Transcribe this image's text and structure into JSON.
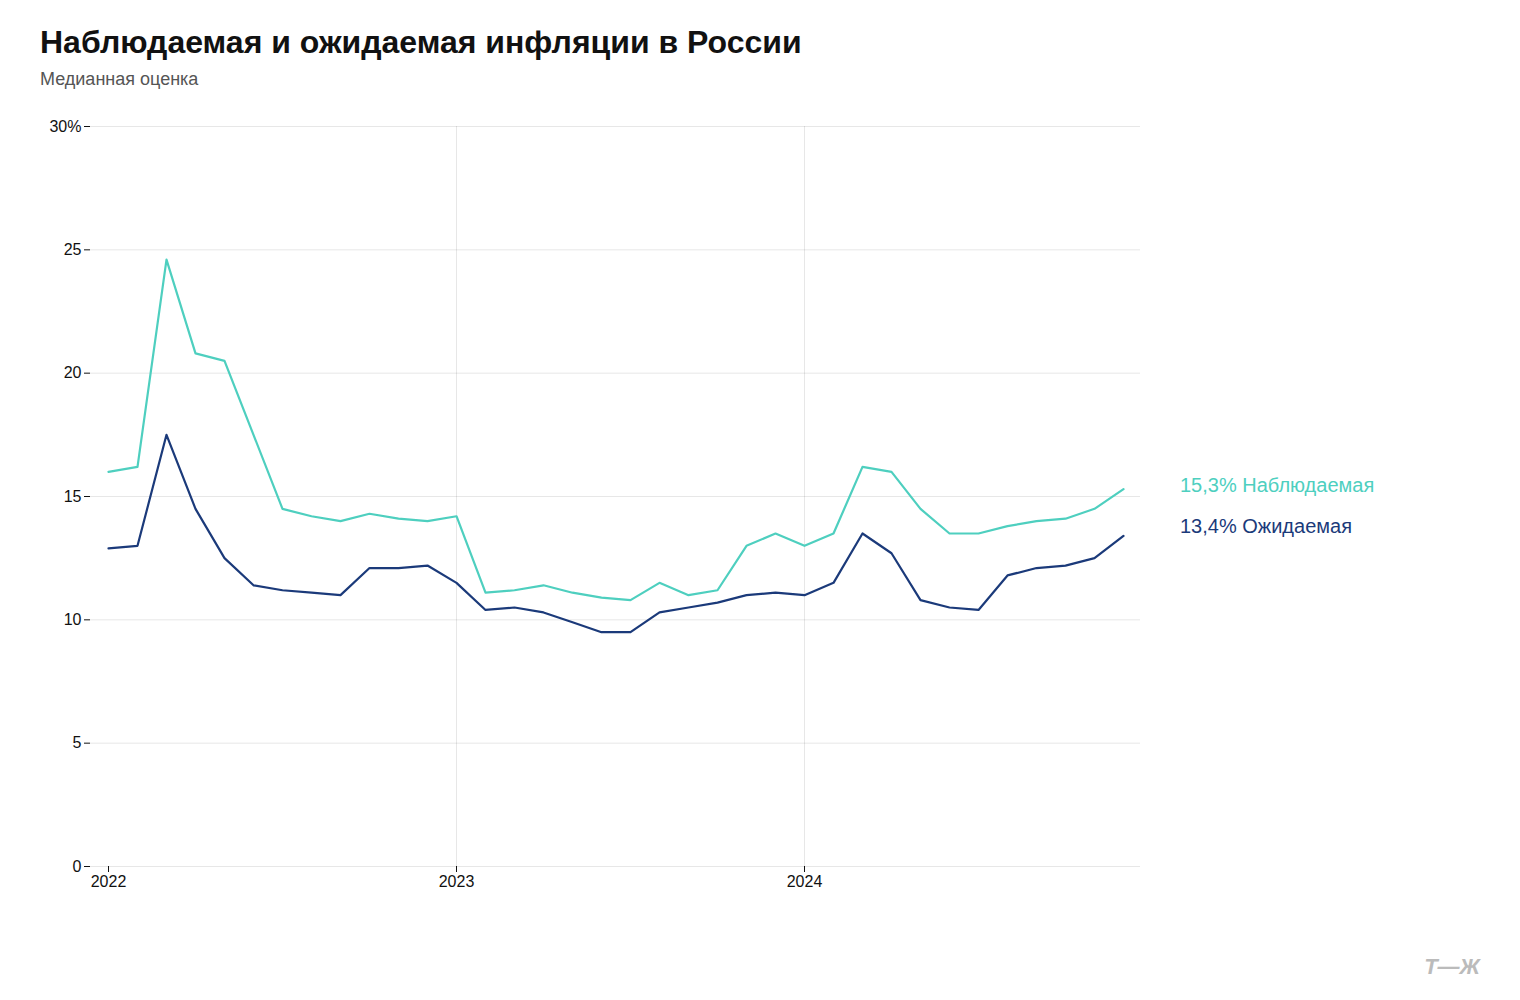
{
  "chart_data": {
    "type": "line",
    "title": "Наблюдаемая и ожидаемая инфляции в России",
    "subtitle": "Медианная оценка",
    "categories": [
      "2022",
      null,
      null,
      null,
      null,
      null,
      null,
      null,
      null,
      null,
      null,
      null,
      "2023",
      null,
      null,
      null,
      null,
      null,
      null,
      null,
      null,
      null,
      null,
      null,
      "2024",
      null,
      null,
      null,
      null,
      null,
      null,
      null,
      null,
      null,
      null,
      null
    ],
    "series": [
      {
        "name": "15,3% Наблюдаемая",
        "color": "#4ECFBF",
        "values": [
          16.0,
          16.2,
          24.6,
          20.8,
          20.5,
          17.5,
          14.5,
          14.2,
          14.0,
          14.3,
          14.1,
          14.0,
          14.2,
          11.1,
          11.2,
          11.4,
          11.1,
          10.9,
          10.8,
          11.5,
          11.0,
          11.2,
          13.0,
          13.5,
          13.0,
          13.5,
          16.2,
          16.0,
          14.5,
          13.5,
          13.5,
          13.8,
          14.0,
          14.1,
          14.5,
          15.3
        ]
      },
      {
        "name": "13,4% Ожидаемая",
        "color": "#1B3A7A",
        "values": [
          12.9,
          13.0,
          17.5,
          14.5,
          12.5,
          11.4,
          11.2,
          11.1,
          11.0,
          12.1,
          12.1,
          12.2,
          11.5,
          10.4,
          10.5,
          10.3,
          9.9,
          9.5,
          9.5,
          10.3,
          10.5,
          10.7,
          11.0,
          11.1,
          11.0,
          11.5,
          13.5,
          12.7,
          10.8,
          10.5,
          10.4,
          11.8,
          12.1,
          12.2,
          12.5,
          13.4
        ]
      }
    ],
    "ylim": [
      0,
      30
    ],
    "yticks": [
      0,
      5,
      10,
      15,
      20,
      25,
      {
        "value": 30,
        "label": "30%"
      }
    ],
    "grid": true,
    "legend": "right",
    "annotations": [
      {
        "text": "Т—Ж",
        "color": "#BBBBBB"
      }
    ]
  }
}
